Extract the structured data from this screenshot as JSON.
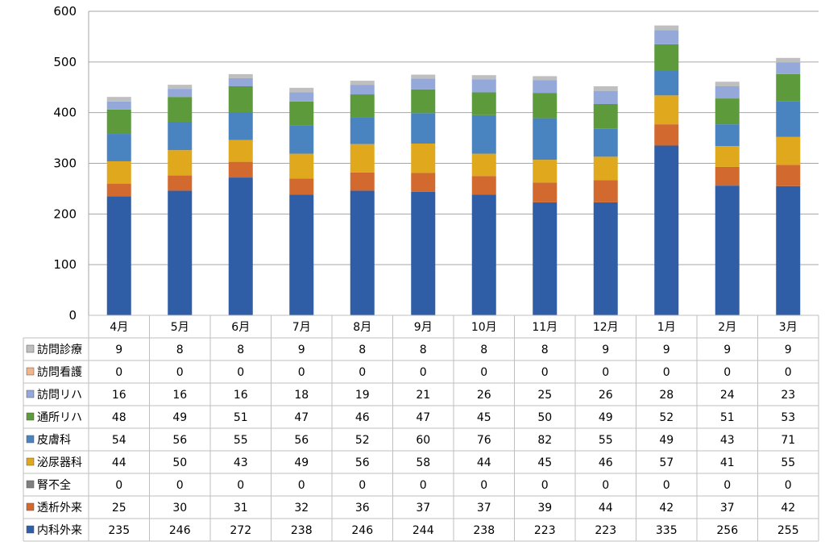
{
  "chart_data": {
    "type": "bar",
    "stacked": true,
    "categories": [
      "4月",
      "5月",
      "6月",
      "7月",
      "8月",
      "9月",
      "10月",
      "11月",
      "12月",
      "1月",
      "2月",
      "3月"
    ],
    "ylim": [
      0,
      600
    ],
    "yticks": [
      0,
      100,
      200,
      300,
      400,
      500,
      600
    ],
    "grid": true,
    "legend_placement": "left of data table",
    "series": [
      {
        "name": "内科外来",
        "color": "#2f5ea6",
        "values": [
          235,
          246,
          272,
          238,
          246,
          244,
          238,
          223,
          223,
          335,
          256,
          255
        ]
      },
      {
        "name": "透析外来",
        "color": "#d2692e",
        "values": [
          25,
          30,
          31,
          32,
          36,
          37,
          37,
          39,
          44,
          42,
          37,
          42
        ]
      },
      {
        "name": "腎不全",
        "color": "#7f7f7f",
        "values": [
          0,
          0,
          0,
          0,
          0,
          0,
          0,
          0,
          0,
          0,
          0,
          0
        ]
      },
      {
        "name": "泌尿器科",
        "color": "#e0a81c",
        "values": [
          44,
          50,
          43,
          49,
          56,
          58,
          44,
          45,
          46,
          57,
          41,
          55
        ]
      },
      {
        "name": "皮膚科",
        "color": "#4a84c0",
        "values": [
          54,
          56,
          55,
          56,
          52,
          60,
          76,
          82,
          55,
          49,
          43,
          71
        ]
      },
      {
        "name": "通所リハ",
        "color": "#5c9a3c",
        "values": [
          48,
          49,
          51,
          47,
          46,
          47,
          45,
          50,
          49,
          52,
          51,
          53
        ]
      },
      {
        "name": "訪問リハ",
        "color": "#94a9d9",
        "values": [
          16,
          16,
          16,
          18,
          19,
          21,
          26,
          25,
          26,
          28,
          24,
          23
        ]
      },
      {
        "name": "訪問看護",
        "color": "#f2b48a",
        "values": [
          0,
          0,
          0,
          0,
          0,
          0,
          0,
          0,
          0,
          0,
          0,
          0
        ]
      },
      {
        "name": "訪問診療",
        "color": "#bfbfbf",
        "values": [
          9,
          8,
          8,
          9,
          8,
          8,
          8,
          8,
          9,
          9,
          9,
          9
        ]
      }
    ],
    "table_row_order": [
      "訪問診療",
      "訪問看護",
      "訪問リハ",
      "通所リハ",
      "皮膚科",
      "泌尿器科",
      "腎不全",
      "透析外来",
      "内科外来"
    ]
  }
}
